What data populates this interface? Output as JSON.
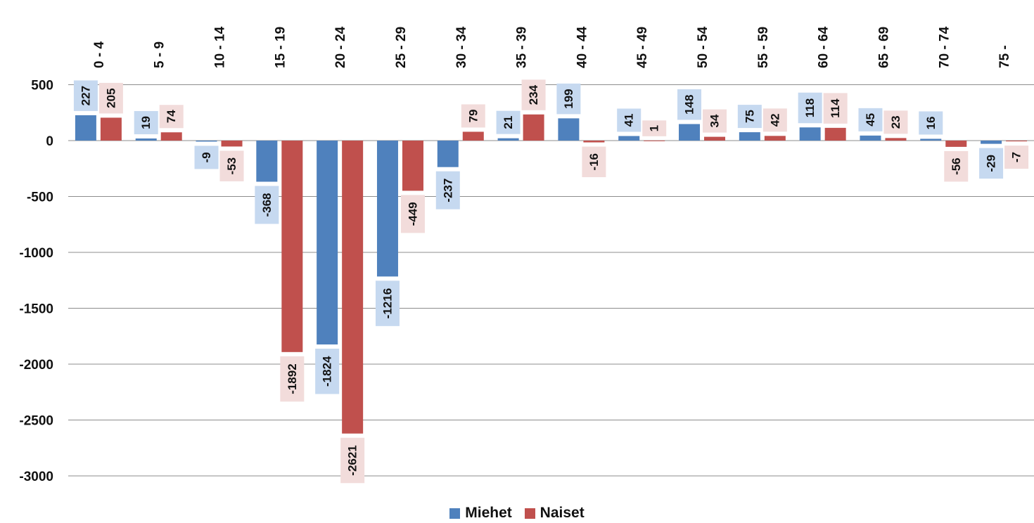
{
  "chart_data": {
    "type": "bar",
    "categories": [
      "0 - 4",
      "5 - 9",
      "10 - 14",
      "15 - 19",
      "20 - 24",
      "25 - 29",
      "30 - 34",
      "35 - 39",
      "40 - 44",
      "45 - 49",
      "50 - 54",
      "55 - 59",
      "60 - 64",
      "65 - 69",
      "70 - 74",
      "75 -"
    ],
    "series": [
      {
        "name": "Miehet",
        "color": "#4F81BD",
        "label_bg": "#C6D9F0",
        "values": [
          227,
          19,
          -9,
          -368,
          -1824,
          -1216,
          -237,
          21,
          199,
          41,
          148,
          75,
          118,
          45,
          16,
          -29
        ]
      },
      {
        "name": "Naiset",
        "color": "#C0504D",
        "label_bg": "#F2DCDB",
        "values": [
          205,
          74,
          -53,
          -1892,
          -2621,
          -449,
          79,
          234,
          -16,
          1,
          34,
          42,
          114,
          23,
          -56,
          -7
        ]
      }
    ],
    "ylim": [
      -3000,
      500
    ],
    "yticks": [
      500,
      0,
      -500,
      -1000,
      -1500,
      -2000,
      -2500,
      -3000
    ],
    "grid": true,
    "legend_position": "bottom",
    "category_axis_position": "top",
    "data_labels": true
  }
}
